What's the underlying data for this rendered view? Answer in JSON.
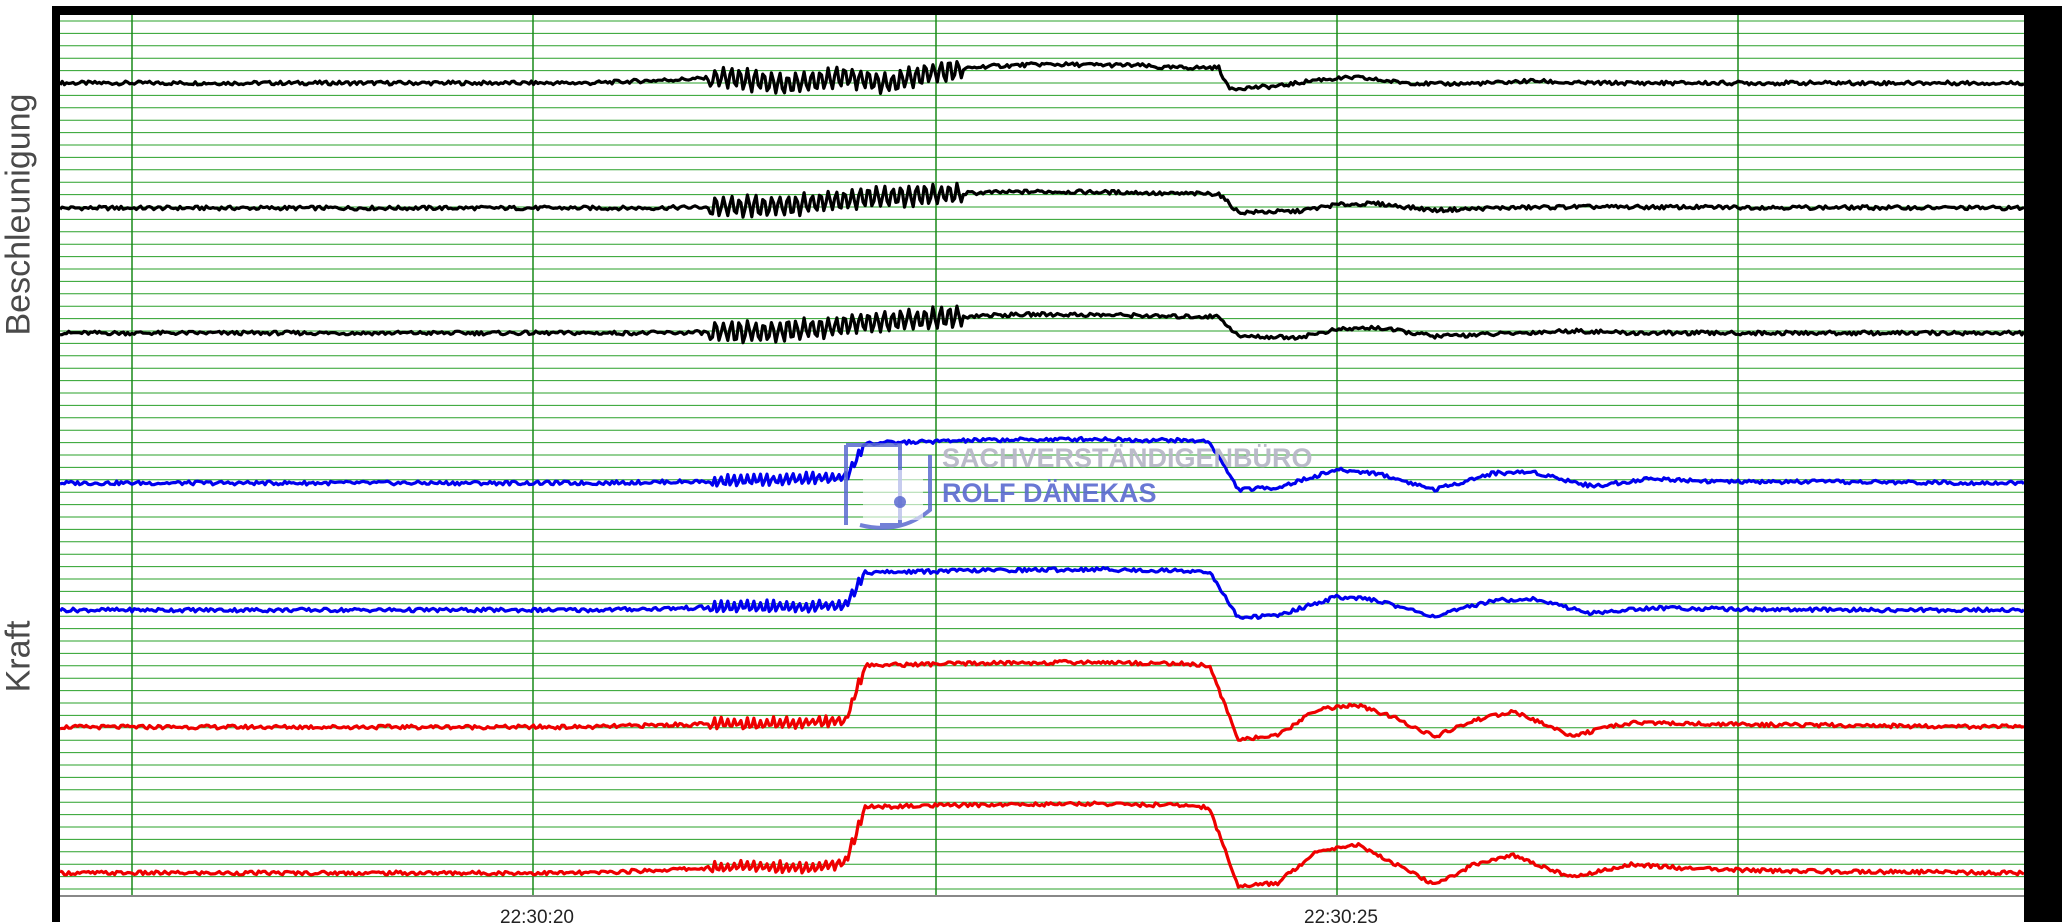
{
  "chart_data": {
    "type": "line",
    "title": "",
    "xlabel": "",
    "ylabel_groups": [
      "Beschleunigung",
      "Kraft"
    ],
    "x_ticks": [
      "22:30:20",
      "22:30:25"
    ],
    "grid": true,
    "colors": {
      "grid_vertical": "#1a8a1a",
      "grid_horizontal": "#2aa02a",
      "acceleration": "#000000",
      "force_blue": "#0000ee",
      "force_red": "#ee0000"
    },
    "series": [
      {
        "group": "Beschleunigung",
        "color": "#000000",
        "points": [
          [
            0,
            0
          ],
          [
            0.27,
            0
          ],
          [
            0.34,
            0.5
          ],
          [
            0.37,
            -0.2
          ],
          [
            0.4,
            0.6
          ],
          [
            0.42,
            -0.1
          ],
          [
            0.44,
            0.8
          ],
          [
            0.47,
            1.5
          ],
          [
            0.5,
            1.7
          ],
          [
            0.55,
            1.6
          ],
          [
            0.56,
            1.4
          ],
          [
            0.59,
            1.4
          ],
          [
            0.595,
            -0.5
          ],
          [
            0.62,
            -0.3
          ],
          [
            0.64,
            0.3
          ],
          [
            0.66,
            0.5
          ],
          [
            0.68,
            0.1
          ],
          [
            0.7,
            -0.1
          ],
          [
            0.73,
            0
          ],
          [
            0.75,
            0.2
          ],
          [
            0.77,
            0
          ],
          [
            1,
            0
          ]
        ]
      },
      {
        "group": "Beschleunigung",
        "color": "#000000",
        "points": [
          [
            0,
            0
          ],
          [
            0.3,
            0
          ],
          [
            0.37,
            0.2
          ],
          [
            0.39,
            0.6
          ],
          [
            0.42,
            1.0
          ],
          [
            0.47,
            1.4
          ],
          [
            0.5,
            1.5
          ],
          [
            0.55,
            1.4
          ],
          [
            0.56,
            1.3
          ],
          [
            0.59,
            1.3
          ],
          [
            0.6,
            -0.4
          ],
          [
            0.63,
            -0.3
          ],
          [
            0.65,
            0.3
          ],
          [
            0.67,
            0.4
          ],
          [
            0.7,
            -0.2
          ],
          [
            0.73,
            0
          ],
          [
            0.77,
            0.1
          ],
          [
            1,
            0
          ]
        ]
      },
      {
        "group": "Beschleunigung",
        "color": "#000000",
        "points": [
          [
            0,
            0
          ],
          [
            0.3,
            0
          ],
          [
            0.36,
            0.1
          ],
          [
            0.39,
            0.5
          ],
          [
            0.42,
            1.1
          ],
          [
            0.47,
            1.6
          ],
          [
            0.5,
            1.7
          ],
          [
            0.55,
            1.6
          ],
          [
            0.56,
            1.5
          ],
          [
            0.59,
            1.5
          ],
          [
            0.6,
            -0.3
          ],
          [
            0.63,
            -0.4
          ],
          [
            0.65,
            0.3
          ],
          [
            0.67,
            0.5
          ],
          [
            0.7,
            -0.3
          ],
          [
            0.73,
            -0.1
          ],
          [
            0.77,
            0.2
          ],
          [
            0.8,
            0
          ],
          [
            1,
            0
          ]
        ]
      },
      {
        "group": "Kraft",
        "color": "#0000ee",
        "points": [
          [
            0,
            0
          ],
          [
            0.27,
            0
          ],
          [
            0.35,
            0.2
          ],
          [
            0.38,
            0.4
          ],
          [
            0.4,
            0.5
          ],
          [
            0.41,
            3.6
          ],
          [
            0.47,
            3.9
          ],
          [
            0.53,
            4.0
          ],
          [
            0.55,
            3.9
          ],
          [
            0.565,
            3.9
          ],
          [
            0.585,
            3.8
          ],
          [
            0.6,
            -0.6
          ],
          [
            0.62,
            -0.4
          ],
          [
            0.65,
            1.2
          ],
          [
            0.67,
            0.9
          ],
          [
            0.7,
            -0.6
          ],
          [
            0.73,
            0.9
          ],
          [
            0.75,
            1.0
          ],
          [
            0.78,
            -0.3
          ],
          [
            0.81,
            0.4
          ],
          [
            0.85,
            0.1
          ],
          [
            0.9,
            0.1
          ],
          [
            1,
            0
          ]
        ]
      },
      {
        "group": "Kraft",
        "color": "#0000ee",
        "points": [
          [
            0,
            0
          ],
          [
            0.27,
            0
          ],
          [
            0.3,
            0.1
          ],
          [
            0.35,
            0.3
          ],
          [
            0.38,
            0.3
          ],
          [
            0.4,
            0.5
          ],
          [
            0.41,
            3.4
          ],
          [
            0.47,
            3.6
          ],
          [
            0.53,
            3.7
          ],
          [
            0.55,
            3.6
          ],
          [
            0.565,
            3.6
          ],
          [
            0.585,
            3.5
          ],
          [
            0.6,
            -0.7
          ],
          [
            0.62,
            -0.5
          ],
          [
            0.65,
            1.2
          ],
          [
            0.67,
            0.9
          ],
          [
            0.7,
            -0.6
          ],
          [
            0.73,
            0.9
          ],
          [
            0.75,
            1.0
          ],
          [
            0.78,
            -0.3
          ],
          [
            0.81,
            0.2
          ],
          [
            0.85,
            0.1
          ],
          [
            0.9,
            0
          ],
          [
            1,
            0
          ]
        ]
      },
      {
        "group": "Kraft",
        "color": "#ee0000",
        "points": [
          [
            0,
            0
          ],
          [
            0.27,
            0
          ],
          [
            0.31,
            0.2
          ],
          [
            0.35,
            0.3
          ],
          [
            0.38,
            0.4
          ],
          [
            0.4,
            0.6
          ],
          [
            0.41,
            5.6
          ],
          [
            0.47,
            5.8
          ],
          [
            0.53,
            5.9
          ],
          [
            0.55,
            5.8
          ],
          [
            0.565,
            5.8
          ],
          [
            0.585,
            5.6
          ],
          [
            0.6,
            -1.1
          ],
          [
            0.62,
            -0.8
          ],
          [
            0.64,
            1.6
          ],
          [
            0.66,
            2.0
          ],
          [
            0.68,
            0.8
          ],
          [
            0.7,
            -0.9
          ],
          [
            0.72,
            0.6
          ],
          [
            0.74,
            1.4
          ],
          [
            0.77,
            -0.8
          ],
          [
            0.8,
            0.4
          ],
          [
            0.83,
            0.3
          ],
          [
            0.87,
            0.2
          ],
          [
            1,
            0
          ]
        ]
      },
      {
        "group": "Kraft",
        "color": "#ee0000",
        "points": [
          [
            0,
            0
          ],
          [
            0.27,
            0
          ],
          [
            0.31,
            0.3
          ],
          [
            0.35,
            0.6
          ],
          [
            0.38,
            0.5
          ],
          [
            0.4,
            0.9
          ],
          [
            0.41,
            6.0
          ],
          [
            0.47,
            6.2
          ],
          [
            0.53,
            6.3
          ],
          [
            0.55,
            6.2
          ],
          [
            0.565,
            6.2
          ],
          [
            0.585,
            6.0
          ],
          [
            0.6,
            -1.2
          ],
          [
            0.62,
            -0.9
          ],
          [
            0.64,
            2.0
          ],
          [
            0.66,
            2.6
          ],
          [
            0.68,
            0.8
          ],
          [
            0.7,
            -1.1
          ],
          [
            0.72,
            0.8
          ],
          [
            0.74,
            1.6
          ],
          [
            0.77,
            -0.4
          ],
          [
            0.8,
            0.8
          ],
          [
            0.83,
            0.4
          ],
          [
            0.87,
            0.2
          ],
          [
            1,
            0
          ]
        ]
      }
    ]
  },
  "watermark": {
    "line1": "SACHVERSTÄNDIGENBÜRO",
    "line2": "ROLF DÄNEKAS",
    "color": "#5a6ad0"
  }
}
